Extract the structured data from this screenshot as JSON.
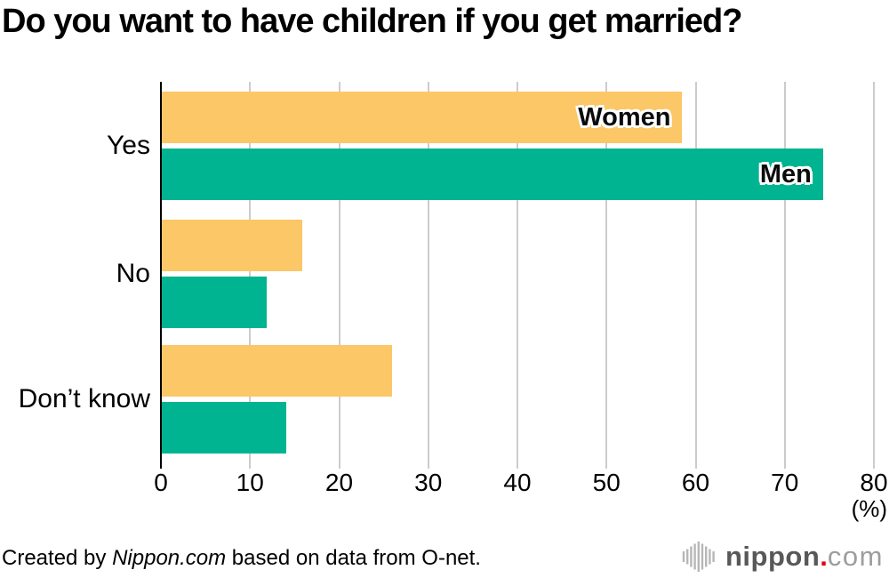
{
  "title": "Do you want to have children if you get married?",
  "chart_data": {
    "type": "bar",
    "orientation": "horizontal",
    "title": "Do you want to have children if you get married?",
    "categories": [
      "Yes",
      "No",
      "Don’t know"
    ],
    "series": [
      {
        "name": "Women",
        "color": "#FBC767",
        "values": [
          58.4,
          15.8,
          25.8
        ]
      },
      {
        "name": "Men",
        "color": "#00B491",
        "values": [
          74.2,
          11.8,
          14.0
        ]
      }
    ],
    "x_ticks": [
      0,
      10,
      20,
      30,
      40,
      50,
      60,
      70,
      80
    ],
    "xlim": [
      0,
      80
    ],
    "unit_label": "(%)",
    "grid": true,
    "legend_position": "labels-inside-first-bars",
    "axis_color": "#000000",
    "gridline_color": "#cccccc"
  },
  "footer": {
    "credit_prefix": "Created by ",
    "credit_source": "Nippon.com",
    "credit_suffix": " based on data from O-net.",
    "logo": {
      "icon": "soundwave-bars-icon",
      "text_main": "nippon",
      "text_dot": ".",
      "text_tld": "com"
    }
  }
}
